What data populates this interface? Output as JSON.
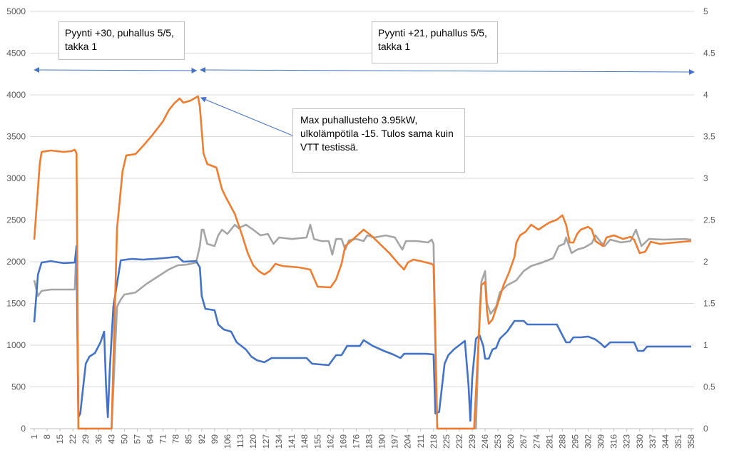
{
  "chart_data": {
    "type": "line",
    "title": "",
    "xlabel": "",
    "ylabel": "",
    "xlim": [
      1,
      360
    ],
    "ylim": [
      0,
      5000
    ],
    "y2lim": [
      0,
      5
    ],
    "grid": true,
    "legend": "none",
    "x_tick_labels": [
      "1",
      "8",
      "15",
      "22",
      "29",
      "36",
      "43",
      "50",
      "57",
      "64",
      "71",
      "78",
      "85",
      "92",
      "99",
      "106",
      "113",
      "120",
      "127",
      "134",
      "141",
      "148",
      "155",
      "162",
      "169",
      "176",
      "183",
      "190",
      "197",
      "204",
      "211",
      "218",
      "225",
      "232",
      "239",
      "246",
      "253",
      "260",
      "267",
      "274",
      "281",
      "288",
      "295",
      "302",
      "309",
      "316",
      "323",
      "330",
      "337",
      "344",
      "351",
      "358"
    ],
    "y_tick_labels": [
      "0",
      "500",
      "1000",
      "1500",
      "2000",
      "2500",
      "3000",
      "3500",
      "4000",
      "4500",
      "5000"
    ],
    "y2_tick_labels": [
      "0",
      "0.5",
      "1",
      "1.5",
      "2",
      "2.5",
      "3",
      "3.5",
      "4",
      "4.5",
      "5"
    ],
    "series": [
      {
        "name": "orange",
        "color": "#ED7D31",
        "points": [
          [
            1,
            2265
          ],
          [
            4,
            3170
          ],
          [
            5,
            3316
          ],
          [
            10,
            3333
          ],
          [
            17,
            3316
          ],
          [
            21,
            3325
          ],
          [
            23,
            3342
          ],
          [
            24,
            3300
          ],
          [
            25,
            0
          ],
          [
            43,
            0
          ],
          [
            46,
            2400
          ],
          [
            49,
            3085
          ],
          [
            51,
            3274
          ],
          [
            56,
            3290
          ],
          [
            60,
            3385
          ],
          [
            65,
            3513
          ],
          [
            71,
            3684
          ],
          [
            74,
            3812
          ],
          [
            77,
            3897
          ],
          [
            80,
            3957
          ],
          [
            82,
            3906
          ],
          [
            86,
            3932
          ],
          [
            90,
            3983
          ],
          [
            91,
            3855
          ],
          [
            93,
            3299
          ],
          [
            95,
            3171
          ],
          [
            100,
            3128
          ],
          [
            103,
            2872
          ],
          [
            105,
            2778
          ],
          [
            110,
            2573
          ],
          [
            114,
            2316
          ],
          [
            117,
            2103
          ],
          [
            120,
            1957
          ],
          [
            123,
            1889
          ],
          [
            126,
            1846
          ],
          [
            129,
            1889
          ],
          [
            132,
            1974
          ],
          [
            136,
            1949
          ],
          [
            145,
            1932
          ],
          [
            151,
            1906
          ],
          [
            153,
            1803
          ],
          [
            155,
            1701
          ],
          [
            162,
            1692
          ],
          [
            165,
            1786
          ],
          [
            168,
            1974
          ],
          [
            170,
            2188
          ],
          [
            174,
            2265
          ],
          [
            180,
            2385
          ],
          [
            184,
            2316
          ],
          [
            194,
            2103
          ],
          [
            199,
            1974
          ],
          [
            202,
            1906
          ],
          [
            204,
            1991
          ],
          [
            207,
            2026
          ],
          [
            211,
            2008
          ],
          [
            217,
            1974
          ],
          [
            218,
            1957
          ],
          [
            220,
            0
          ],
          [
            240,
            0
          ],
          [
            244,
            1718
          ],
          [
            246,
            1760
          ],
          [
            247,
            1419
          ],
          [
            248,
            1256
          ],
          [
            250,
            1308
          ],
          [
            253,
            1504
          ],
          [
            256,
            1718
          ],
          [
            259,
            1872
          ],
          [
            262,
            2060
          ],
          [
            263,
            2231
          ],
          [
            265,
            2316
          ],
          [
            268,
            2359
          ],
          [
            271,
            2444
          ],
          [
            275,
            2385
          ],
          [
            279,
            2444
          ],
          [
            281,
            2470
          ],
          [
            285,
            2504
          ],
          [
            288,
            2556
          ],
          [
            290,
            2444
          ],
          [
            292,
            2231
          ],
          [
            294,
            2231
          ],
          [
            296,
            2333
          ],
          [
            298,
            2385
          ],
          [
            302,
            2419
          ],
          [
            304,
            2385
          ],
          [
            306,
            2248
          ],
          [
            310,
            2188
          ],
          [
            312,
            2291
          ],
          [
            316,
            2316
          ],
          [
            321,
            2273
          ],
          [
            325,
            2299
          ],
          [
            327,
            2265
          ],
          [
            330,
            2103
          ],
          [
            333,
            2120
          ],
          [
            336,
            2239
          ],
          [
            341,
            2214
          ],
          [
            349,
            2231
          ],
          [
            358,
            2248
          ]
        ]
      },
      {
        "name": "blue",
        "color": "#4472C4",
        "points": [
          [
            1,
            1274
          ],
          [
            3,
            1846
          ],
          [
            5,
            1991
          ],
          [
            10,
            2008
          ],
          [
            17,
            1983
          ],
          [
            23,
            1991
          ],
          [
            24,
            2188
          ],
          [
            25,
            137
          ],
          [
            26,
            180
          ],
          [
            29,
            778
          ],
          [
            31,
            863
          ],
          [
            34,
            906
          ],
          [
            37,
            1034
          ],
          [
            39,
            1162
          ],
          [
            40,
            521
          ],
          [
            41,
            137
          ],
          [
            42,
            692
          ],
          [
            44,
            1461
          ],
          [
            48,
            2017
          ],
          [
            54,
            2034
          ],
          [
            60,
            2026
          ],
          [
            66,
            2034
          ],
          [
            71,
            2043
          ],
          [
            79,
            2060
          ],
          [
            82,
            2000
          ],
          [
            89,
            2008
          ],
          [
            91,
            1932
          ],
          [
            92,
            1590
          ],
          [
            94,
            1436
          ],
          [
            99,
            1419
          ],
          [
            101,
            1248
          ],
          [
            104,
            1188
          ],
          [
            108,
            1162
          ],
          [
            111,
            1034
          ],
          [
            116,
            949
          ],
          [
            119,
            863
          ],
          [
            122,
            820
          ],
          [
            126,
            795
          ],
          [
            130,
            846
          ],
          [
            149,
            846
          ],
          [
            152,
            778
          ],
          [
            161,
            761
          ],
          [
            165,
            880
          ],
          [
            168,
            880
          ],
          [
            171,
            991
          ],
          [
            178,
            991
          ],
          [
            180,
            1060
          ],
          [
            185,
            991
          ],
          [
            191,
            932
          ],
          [
            196,
            889
          ],
          [
            200,
            846
          ],
          [
            202,
            897
          ],
          [
            214,
            897
          ],
          [
            218,
            889
          ],
          [
            219,
            180
          ],
          [
            221,
            200
          ],
          [
            224,
            778
          ],
          [
            226,
            880
          ],
          [
            229,
            949
          ],
          [
            233,
            1017
          ],
          [
            235,
            1051
          ],
          [
            237,
            521
          ],
          [
            238,
            94
          ],
          [
            239,
            607
          ],
          [
            241,
            1077
          ],
          [
            243,
            1120
          ],
          [
            245,
            991
          ],
          [
            246,
            838
          ],
          [
            248,
            838
          ],
          [
            250,
            949
          ],
          [
            252,
            966
          ],
          [
            254,
            1077
          ],
          [
            258,
            1162
          ],
          [
            262,
            1291
          ],
          [
            267,
            1291
          ],
          [
            269,
            1248
          ],
          [
            273,
            1248
          ],
          [
            285,
            1248
          ],
          [
            287,
            1162
          ],
          [
            290,
            1034
          ],
          [
            292,
            1034
          ],
          [
            294,
            1094
          ],
          [
            298,
            1094
          ],
          [
            302,
            1103
          ],
          [
            306,
            1068
          ],
          [
            309,
            1017
          ],
          [
            311,
            974
          ],
          [
            314,
            1034
          ],
          [
            327,
            1034
          ],
          [
            329,
            932
          ],
          [
            332,
            932
          ],
          [
            334,
            983
          ],
          [
            354,
            983
          ],
          [
            358,
            983
          ]
        ]
      },
      {
        "name": "gray",
        "color": "#A5A5A5",
        "points": [
          [
            1,
            1778
          ],
          [
            3,
            1590
          ],
          [
            5,
            1650
          ],
          [
            10,
            1667
          ],
          [
            15,
            1667
          ],
          [
            23,
            1667
          ],
          [
            24,
            2188
          ],
          [
            25,
            0
          ],
          [
            43,
            0
          ],
          [
            46,
            1461
          ],
          [
            48,
            1547
          ],
          [
            50,
            1607
          ],
          [
            56,
            1632
          ],
          [
            62,
            1735
          ],
          [
            68,
            1820
          ],
          [
            74,
            1906
          ],
          [
            79,
            1957
          ],
          [
            84,
            1966
          ],
          [
            89,
            1991
          ],
          [
            91,
            2188
          ],
          [
            92,
            2384
          ],
          [
            93,
            2384
          ],
          [
            95,
            2214
          ],
          [
            99,
            2188
          ],
          [
            101,
            2316
          ],
          [
            103,
            2384
          ],
          [
            106,
            2333
          ],
          [
            110,
            2444
          ],
          [
            112,
            2402
          ],
          [
            116,
            2444
          ],
          [
            120,
            2384
          ],
          [
            124,
            2316
          ],
          [
            128,
            2333
          ],
          [
            131,
            2214
          ],
          [
            134,
            2291
          ],
          [
            141,
            2273
          ],
          [
            149,
            2291
          ],
          [
            151,
            2444
          ],
          [
            153,
            2273
          ],
          [
            157,
            2248
          ],
          [
            161,
            2248
          ],
          [
            163,
            2085
          ],
          [
            165,
            2273
          ],
          [
            168,
            2273
          ],
          [
            170,
            2145
          ],
          [
            172,
            2256
          ],
          [
            176,
            2273
          ],
          [
            180,
            2248
          ],
          [
            182,
            2316
          ],
          [
            186,
            2291
          ],
          [
            192,
            2316
          ],
          [
            197,
            2291
          ],
          [
            201,
            2145
          ],
          [
            203,
            2248
          ],
          [
            209,
            2248
          ],
          [
            215,
            2231
          ],
          [
            217,
            2265
          ],
          [
            218,
            2214
          ],
          [
            220,
            0
          ],
          [
            241,
            0
          ],
          [
            243,
            1376
          ],
          [
            244,
            1760
          ],
          [
            246,
            1889
          ],
          [
            247,
            1504
          ],
          [
            249,
            1376
          ],
          [
            252,
            1461
          ],
          [
            254,
            1632
          ],
          [
            258,
            1718
          ],
          [
            263,
            1778
          ],
          [
            267,
            1889
          ],
          [
            271,
            1949
          ],
          [
            277,
            1991
          ],
          [
            283,
            2043
          ],
          [
            286,
            2188
          ],
          [
            289,
            2214
          ],
          [
            290,
            2291
          ],
          [
            293,
            2103
          ],
          [
            296,
            2145
          ],
          [
            300,
            2171
          ],
          [
            304,
            2222
          ],
          [
            306,
            2316
          ],
          [
            309,
            2231
          ],
          [
            311,
            2188
          ],
          [
            314,
            2265
          ],
          [
            320,
            2231
          ],
          [
            325,
            2248
          ],
          [
            328,
            2384
          ],
          [
            331,
            2188
          ],
          [
            335,
            2273
          ],
          [
            343,
            2265
          ],
          [
            354,
            2273
          ],
          [
            358,
            2265
          ]
        ]
      }
    ],
    "annotations": [
      {
        "text": "Pyynti +30, puhallus 5/5, takka 1",
        "range": [
          1,
          90
        ]
      },
      {
        "text": "Pyynti +21, puhallus 5/5, takka 1",
        "range": [
          92,
          360
        ]
      },
      {
        "text": "Max puhallusteho 3.95kW, ulkolämpötila -15. Tulos sama kuin VTT testissä.",
        "points_to": [
          90,
          3983
        ]
      }
    ]
  }
}
